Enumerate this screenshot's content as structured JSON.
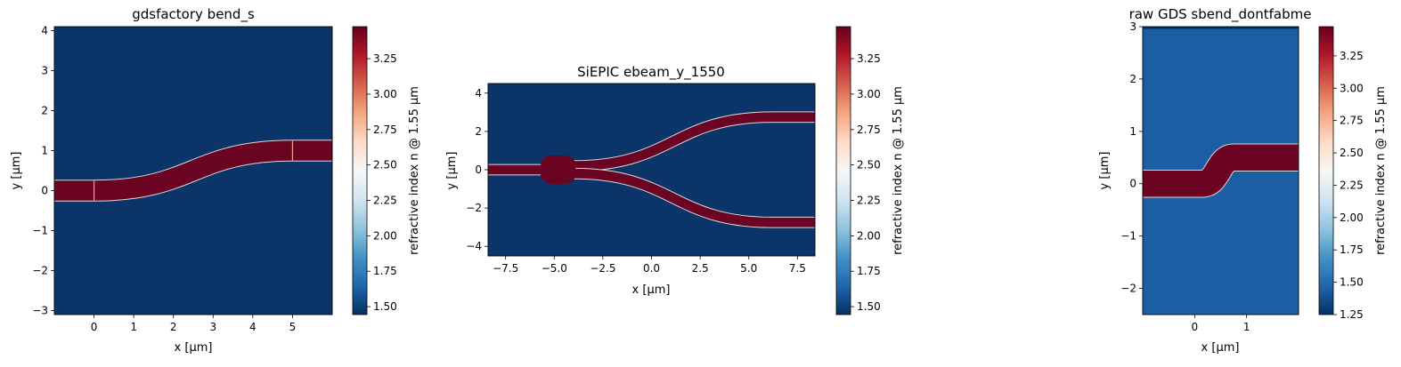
{
  "chart_data": [
    {
      "type": "heatmap",
      "title": "gdsfactory bend_s",
      "xlabel": "x [µm]",
      "ylabel": "y [µm]",
      "xlim": [
        -1,
        6
      ],
      "ylim": [
        -3.1,
        4.1
      ],
      "xticks": [
        0,
        1,
        2,
        3,
        4,
        5
      ],
      "yticks": [
        -3,
        -2,
        -1,
        0,
        1,
        2,
        3,
        4
      ],
      "colorbar": {
        "label": "refractive index n @ 1.55 µm",
        "range": [
          1.444,
          3.476
        ],
        "ticks": [
          1.5,
          1.75,
          2.0,
          2.25,
          2.5,
          2.75,
          3.0,
          3.25
        ],
        "tick_labels": [
          "1.50",
          "1.75",
          "2.00",
          "2.25",
          "2.50",
          "2.75",
          "3.00",
          "3.25"
        ]
      },
      "background_n": 1.444,
      "core_n": 3.476,
      "waveguides": [
        {
          "kind": "sbend",
          "x0": -1,
          "x1": 6,
          "bend_start": 0,
          "bend_end": 5,
          "y_start": 0,
          "y_end": 1,
          "width": 0.5
        }
      ],
      "section_boundaries_x": [
        0,
        5
      ]
    },
    {
      "type": "heatmap",
      "title": "SiEPIC ebeam_y_1550",
      "xlabel": "x [µm]",
      "ylabel": "y [µm]",
      "xlim": [
        -8.4,
        8.4
      ],
      "ylim": [
        -4.5,
        4.5
      ],
      "xticks": [
        -7.5,
        -5.0,
        -2.5,
        0.0,
        2.5,
        5.0,
        7.5
      ],
      "xtick_labels": [
        "−7.5",
        "−5.0",
        "−2.5",
        "0.0",
        "2.5",
        "5.0",
        "7.5"
      ],
      "yticks": [
        -4,
        -2,
        0,
        2,
        4
      ],
      "ytick_labels": [
        "−4",
        "−2",
        "0",
        "2",
        "4"
      ],
      "colorbar": {
        "label": "refractive index n @ 1.55 µm",
        "range": [
          1.444,
          3.476
        ],
        "ticks": [
          1.5,
          1.75,
          2.0,
          2.25,
          2.5,
          2.75,
          3.0,
          3.25
        ],
        "tick_labels": [
          "1.50",
          "1.75",
          "2.00",
          "2.25",
          "2.50",
          "2.75",
          "3.00",
          "3.25"
        ]
      },
      "background_n": 1.444,
      "core_n": 3.476,
      "waveguides": [
        {
          "kind": "straight",
          "x0": -8.4,
          "x1": -5.6,
          "y": 0,
          "width": 0.5
        },
        {
          "kind": "sbend",
          "x0": -4.0,
          "x1": 8.4,
          "bend_start": -4.0,
          "bend_end": 6.2,
          "y_start": 0.2,
          "y_end": 2.75,
          "width": 0.5
        },
        {
          "kind": "sbend",
          "x0": -4.0,
          "x1": 8.4,
          "bend_start": -4.0,
          "bend_end": 6.2,
          "y_start": -0.2,
          "y_end": -2.75,
          "width": 0.5
        }
      ],
      "junction": {
        "x_center": -4.8,
        "half_length": 0.9,
        "half_height": 0.75
      }
    },
    {
      "type": "heatmap",
      "title": "raw GDS sbend_dontfabme",
      "xlabel": "x [µm]",
      "ylabel": "y [µm]",
      "xlim": [
        -1,
        2
      ],
      "ylim": [
        -2.5,
        3
      ],
      "xticks": [
        0,
        1
      ],
      "yticks": [
        -2,
        -1,
        0,
        1,
        2,
        3
      ],
      "ytick_labels": [
        "−2",
        "−1",
        "0",
        "1",
        "2",
        "3"
      ],
      "colorbar": {
        "label": "refractive index n @ 1.55 µm",
        "range": [
          1.25,
          3.476
        ],
        "ticks": [
          1.25,
          1.5,
          1.75,
          2.0,
          2.25,
          2.5,
          2.75,
          3.0,
          3.25
        ],
        "tick_labels": [
          "1.25",
          "1.50",
          "1.75",
          "2.00",
          "2.25",
          "2.50",
          "2.75",
          "3.00",
          "3.25"
        ]
      },
      "background_n": 1.444,
      "core_n": 3.476,
      "waveguides": [
        {
          "kind": "sbend",
          "x0": -1,
          "x1": 2,
          "bend_start": 0.15,
          "bend_end": 0.75,
          "y_start": 0,
          "y_end": 0.5,
          "width": 0.5
        }
      ],
      "top_strip_n": 1.25
    }
  ]
}
